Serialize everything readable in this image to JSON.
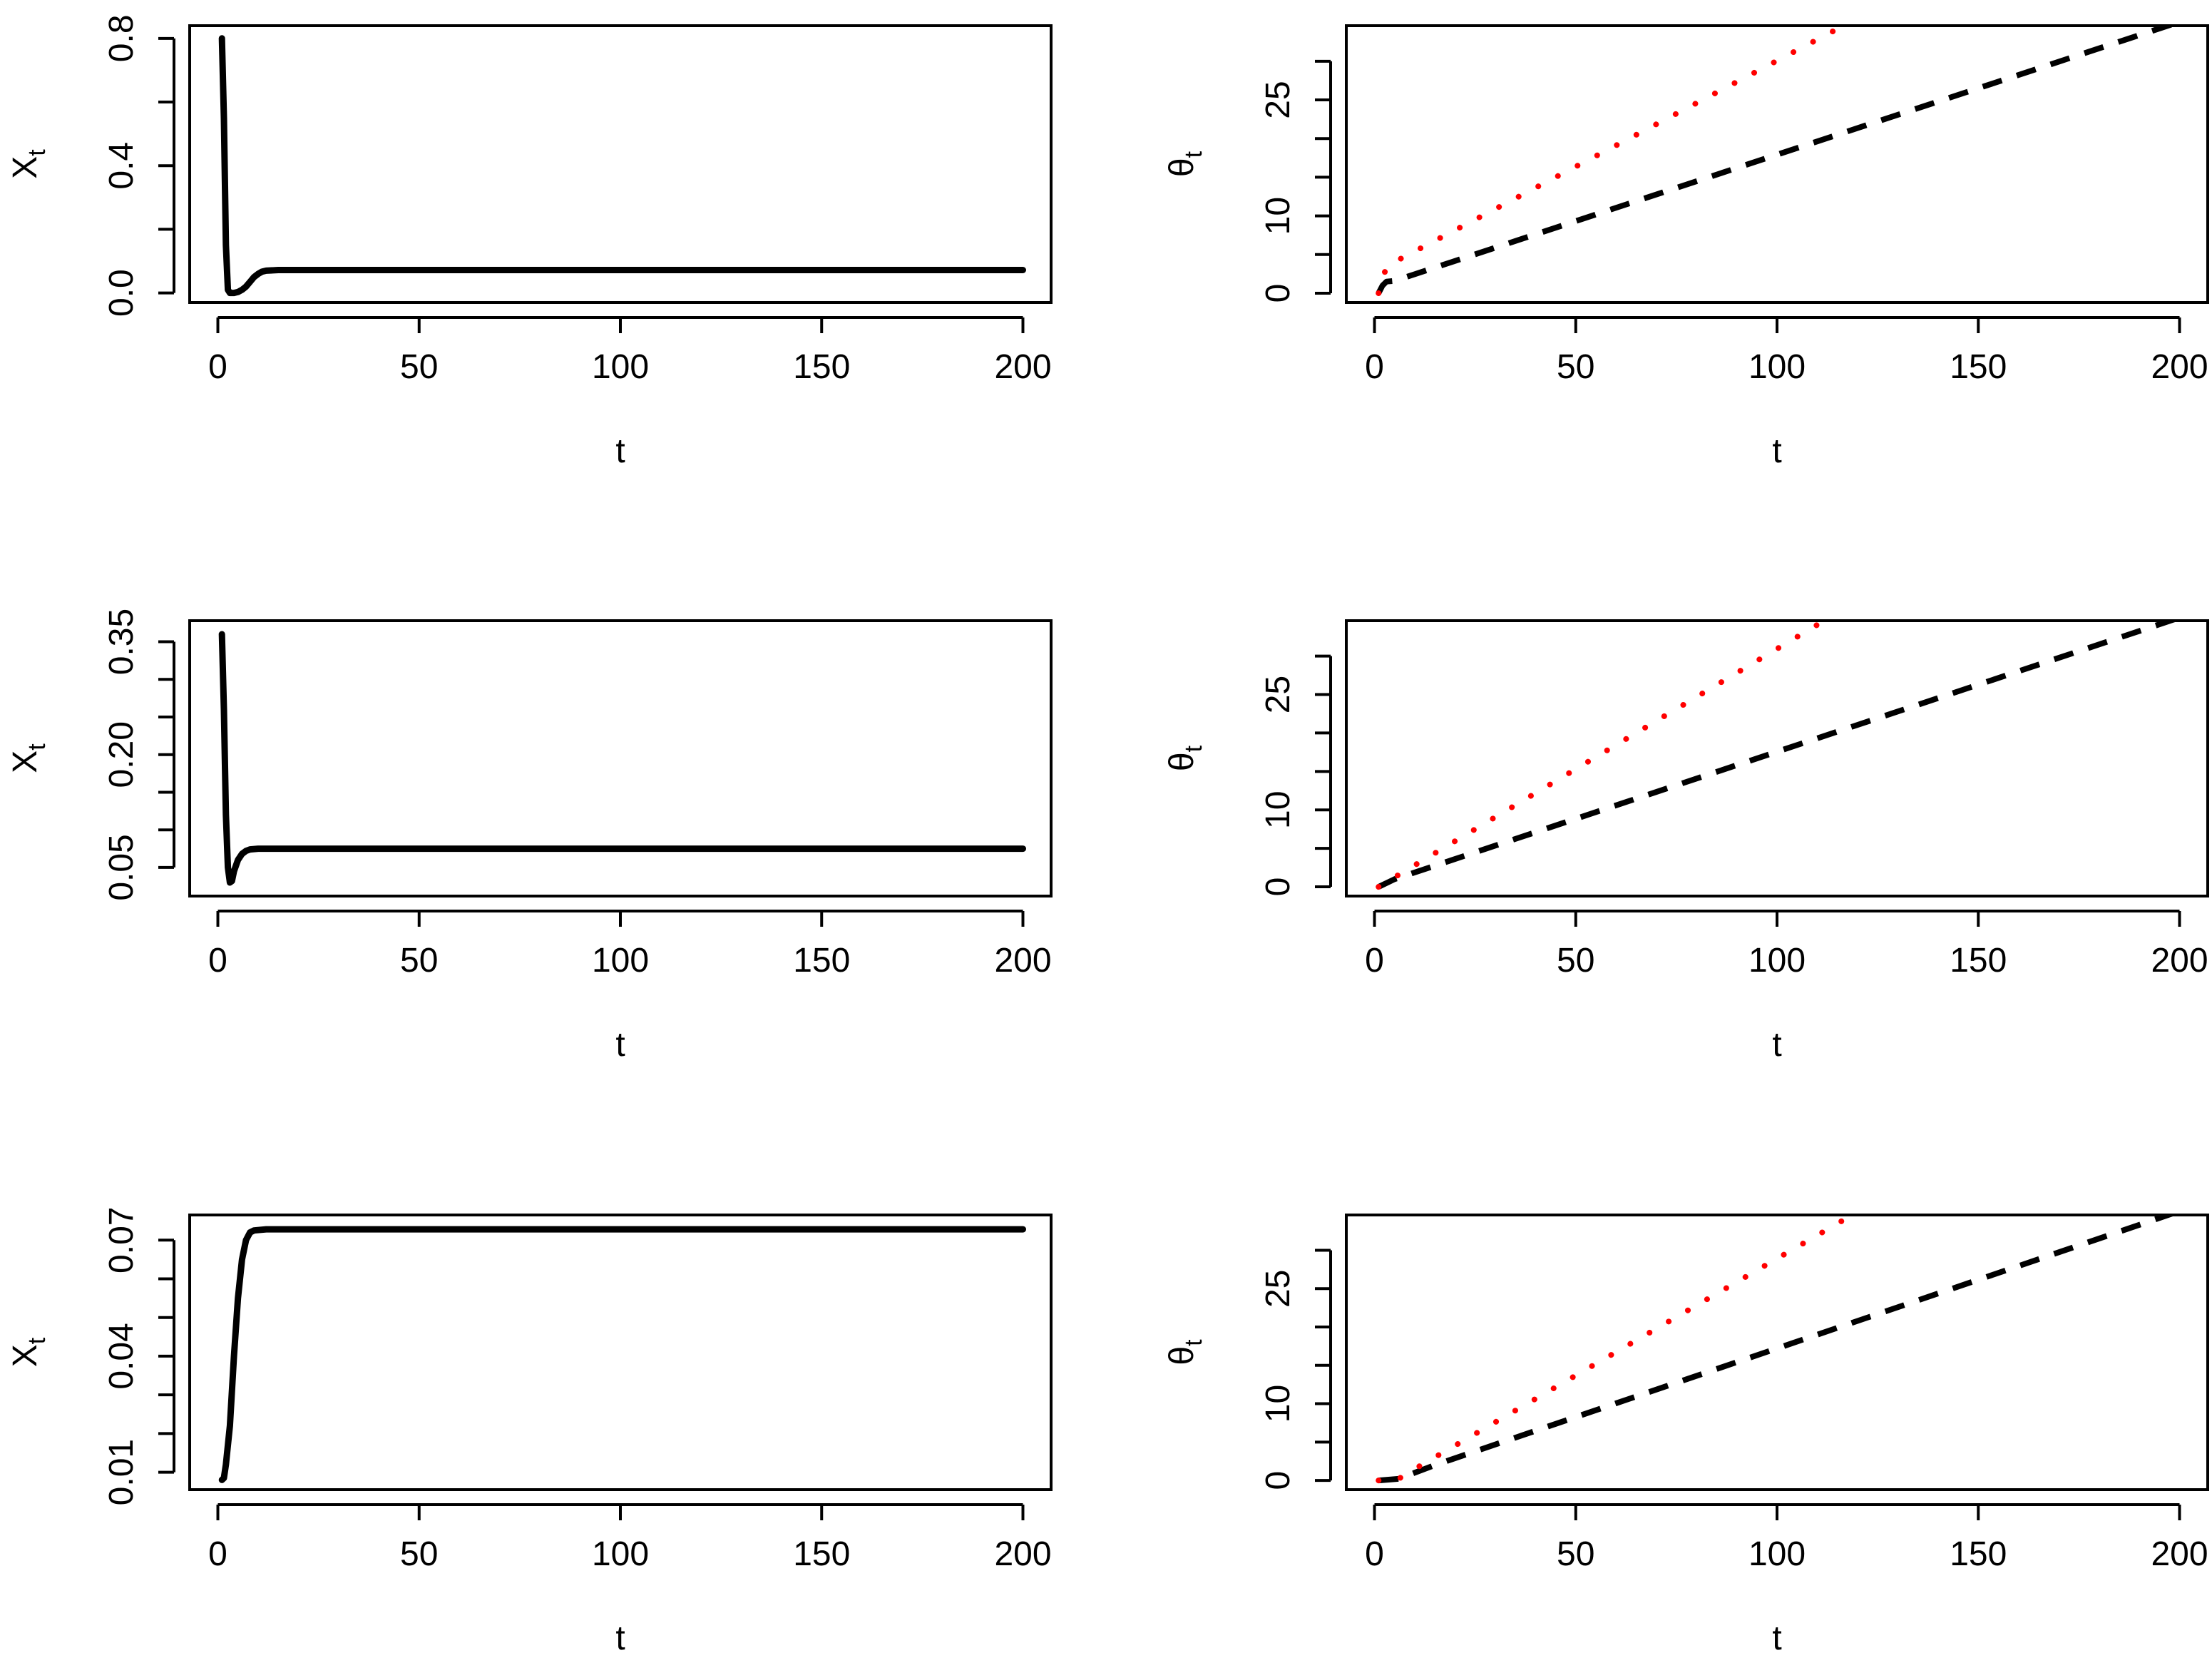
{
  "chart_data": [
    {
      "id": "x-top",
      "type": "line",
      "xlabel": "t",
      "ylabel_main": "X",
      "ylabel_sub": "t",
      "xlim": [
        -7,
        207
      ],
      "ylim": [
        -0.03,
        0.84
      ],
      "xticks": [
        0,
        50,
        100,
        150,
        200
      ],
      "xtick_labels": [
        "0",
        "50",
        "100",
        "150",
        "200"
      ],
      "yticks": [
        0,
        0.2,
        0.4,
        0.6,
        0.8
      ],
      "ytick_labels": [
        "0.0",
        "",
        "0.4",
        "",
        "0.8"
      ],
      "grid": false,
      "series": [
        {
          "style": "solid",
          "color": "#000000",
          "points": [
            [
              1,
              0.8
            ],
            [
              1.5,
              0.55
            ],
            [
              2,
              0.15
            ],
            [
              2.5,
              0.01
            ],
            [
              3,
              0.0
            ],
            [
              4,
              0.0
            ],
            [
              5,
              0.003
            ],
            [
              6,
              0.01
            ],
            [
              7,
              0.02
            ],
            [
              8,
              0.035
            ],
            [
              9,
              0.05
            ],
            [
              10,
              0.06
            ],
            [
              11,
              0.067
            ],
            [
              12,
              0.07
            ],
            [
              15,
              0.072
            ],
            [
              20,
              0.072
            ],
            [
              200,
              0.072
            ]
          ]
        }
      ]
    },
    {
      "id": "theta-top",
      "type": "line",
      "xlabel": "t",
      "ylabel_main": "θ",
      "ylabel_sub": "t",
      "xlim": [
        -7,
        207
      ],
      "ylim": [
        -1.2,
        34.6
      ],
      "xticks": [
        0,
        50,
        100,
        150,
        200
      ],
      "xtick_labels": [
        "0",
        "50",
        "100",
        "150",
        "200"
      ],
      "yticks": [
        0,
        5,
        10,
        15,
        20,
        25,
        30,
        35
      ],
      "ytick_labels": [
        "0",
        "",
        "10",
        "",
        "",
        "25",
        "",
        ""
      ],
      "grid": false,
      "series": [
        {
          "style": "dashed",
          "color": "#000000",
          "points": [
            [
              1,
              0
            ],
            [
              2,
              1.0
            ],
            [
              3,
              1.5
            ],
            [
              5,
              1.6
            ],
            [
              200,
              35.1
            ]
          ]
        },
        {
          "style": "dotted",
          "color": "#ff0000",
          "points": [
            [
              1,
              0
            ],
            [
              3,
              3.5
            ],
            [
              118,
              35.0
            ]
          ]
        }
      ]
    },
    {
      "id": "x-middle",
      "type": "line",
      "xlabel": "t",
      "ylabel_main": "X",
      "ylabel_sub": "t",
      "xlim": [
        -7,
        207
      ],
      "ylim": [
        0.012,
        0.378
      ],
      "xticks": [
        0,
        50,
        100,
        150,
        200
      ],
      "xtick_labels": [
        "0",
        "50",
        "100",
        "150",
        "200"
      ],
      "yticks": [
        0.05,
        0.1,
        0.15,
        0.2,
        0.25,
        0.3,
        0.35
      ],
      "ytick_labels": [
        "0.05",
        "",
        "",
        "0.20",
        "",
        "",
        "0.35"
      ],
      "grid": false,
      "series": [
        {
          "style": "solid",
          "color": "#000000",
          "points": [
            [
              1,
              0.36
            ],
            [
              1.5,
              0.26
            ],
            [
              2,
              0.12
            ],
            [
              2.5,
              0.05
            ],
            [
              3,
              0.03
            ],
            [
              3.5,
              0.032
            ],
            [
              4,
              0.045
            ],
            [
              5,
              0.06
            ],
            [
              6,
              0.068
            ],
            [
              7,
              0.072
            ],
            [
              8,
              0.074
            ],
            [
              10,
              0.075
            ],
            [
              200,
              0.075
            ]
          ]
        }
      ]
    },
    {
      "id": "theta-middle",
      "type": "line",
      "xlabel": "t",
      "ylabel_main": "θ",
      "ylabel_sub": "t",
      "xlim": [
        -7,
        207
      ],
      "ylim": [
        -1.2,
        34.6
      ],
      "xticks": [
        0,
        50,
        100,
        150,
        200
      ],
      "xtick_labels": [
        "0",
        "50",
        "100",
        "150",
        "200"
      ],
      "yticks": [
        0,
        5,
        10,
        15,
        20,
        25,
        30,
        35
      ],
      "ytick_labels": [
        "0",
        "",
        "10",
        "",
        "",
        "25",
        "",
        ""
      ],
      "grid": false,
      "series": [
        {
          "style": "dashed",
          "color": "#000000",
          "points": [
            [
              1,
              0
            ],
            [
              5,
              1.0
            ],
            [
              200,
              35.0
            ]
          ]
        },
        {
          "style": "dotted",
          "color": "#ff0000",
          "points": [
            [
              1,
              0
            ],
            [
              113,
              35.0
            ]
          ]
        }
      ]
    },
    {
      "id": "x-bottom",
      "type": "line",
      "xlabel": "t",
      "ylabel_main": "X",
      "ylabel_sub": "t",
      "xlim": [
        -7,
        207
      ],
      "ylim": [
        0.0055,
        0.0765
      ],
      "xticks": [
        0,
        50,
        100,
        150,
        200
      ],
      "xtick_labels": [
        "0",
        "50",
        "100",
        "150",
        "200"
      ],
      "yticks": [
        0.01,
        0.02,
        0.03,
        0.04,
        0.05,
        0.06,
        0.07
      ],
      "ytick_labels": [
        "0.01",
        "",
        "",
        "0.04",
        "",
        "",
        "0.07"
      ],
      "grid": false,
      "series": [
        {
          "style": "solid",
          "color": "#000000",
          "points": [
            [
              1,
              0.008
            ],
            [
              1.5,
              0.0085
            ],
            [
              2,
              0.012
            ],
            [
              3,
              0.022
            ],
            [
              4,
              0.04
            ],
            [
              5,
              0.055
            ],
            [
              6,
              0.065
            ],
            [
              7,
              0.07
            ],
            [
              8,
              0.072
            ],
            [
              9,
              0.0725
            ],
            [
              12,
              0.0728
            ],
            [
              200,
              0.0728
            ]
          ]
        }
      ]
    },
    {
      "id": "theta-bottom",
      "type": "line",
      "xlabel": "t",
      "ylabel_main": "θ",
      "ylabel_sub": "t",
      "xlim": [
        -7,
        207
      ],
      "ylim": [
        -1.2,
        34.6
      ],
      "xticks": [
        0,
        50,
        100,
        150,
        200
      ],
      "xtick_labels": [
        "0",
        "50",
        "100",
        "150",
        "200"
      ],
      "yticks": [
        0,
        5,
        10,
        15,
        20,
        25,
        30,
        35
      ],
      "ytick_labels": [
        "0",
        "",
        "10",
        "",
        "",
        "25",
        "",
        ""
      ],
      "grid": false,
      "series": [
        {
          "style": "dashed",
          "color": "#000000",
          "points": [
            [
              1,
              0
            ],
            [
              6,
              0.2
            ],
            [
              10,
              1.0
            ],
            [
              15,
              2.0
            ],
            [
              200,
              35.1
            ]
          ]
        },
        {
          "style": "dotted",
          "color": "#ff0000",
          "points": [
            [
              1,
              0
            ],
            [
              6,
              0.2
            ],
            [
              10,
              1.5
            ],
            [
              120,
              35.0
            ]
          ]
        }
      ]
    }
  ]
}
